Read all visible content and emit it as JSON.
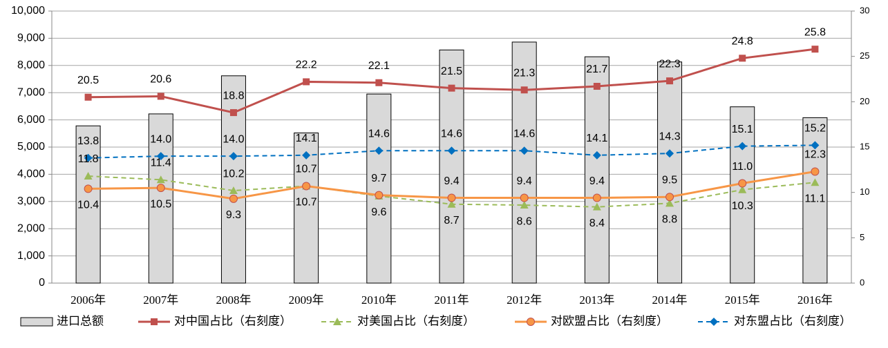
{
  "chart_data": {
    "type": "bar_line",
    "categories": [
      "2006年",
      "2007年",
      "2008年",
      "2009年",
      "2010年",
      "2011年",
      "2012年",
      "2013年",
      "2014年",
      "2015年",
      "2016年"
    ],
    "ylim": [
      0,
      10000
    ],
    "yticks": [
      {
        "value": 0,
        "label": "0"
      },
      {
        "value": 1000,
        "label": "1,000"
      },
      {
        "value": 2000,
        "label": "2,000"
      },
      {
        "value": 3000,
        "label": "3,000"
      },
      {
        "value": 4000,
        "label": "4,000"
      },
      {
        "value": 5000,
        "label": "5,000"
      },
      {
        "value": 6000,
        "label": "6,000"
      },
      {
        "value": 7000,
        "label": "7,000"
      },
      {
        "value": 8000,
        "label": "8,000"
      },
      {
        "value": 9000,
        "label": "9,000"
      },
      {
        "value": 10000,
        "label": "10,000"
      }
    ],
    "y2lim": [
      0,
      30
    ],
    "y2ticks": [
      0,
      5,
      10,
      15,
      20,
      25,
      30
    ],
    "grid": true,
    "series": [
      {
        "name": "进口总额",
        "type": "bar",
        "color": "#d9d9d9",
        "values": [
          5780,
          6220,
          7620,
          5520,
          6950,
          8570,
          8860,
          8320,
          8130,
          6480,
          6080
        ]
      },
      {
        "name": "对中国占比（右刻度）",
        "type": "line",
        "axis": "y2",
        "color": "#c0504d",
        "marker": "square",
        "dash": false,
        "values": [
          20.5,
          20.6,
          18.8,
          22.2,
          22.1,
          21.5,
          21.3,
          21.7,
          22.3,
          24.8,
          25.8
        ],
        "value_labels": [
          "20.5",
          "20.6",
          "18.8",
          "22.2",
          "22.1",
          "21.5",
          "21.3",
          "21.7",
          "22.3",
          "24.8",
          "25.8"
        ]
      },
      {
        "name": "对美国占比（右刻度）",
        "type": "line",
        "axis": "y2",
        "color": "#9bbb59",
        "marker": "triangle",
        "dash": true,
        "values": [
          11.8,
          11.4,
          10.2,
          10.7,
          9.6,
          8.7,
          8.6,
          8.4,
          8.8,
          10.3,
          11.1
        ],
        "value_labels": [
          "11.8",
          "11.4",
          "10.2",
          "10.7",
          "9.6",
          "8.7",
          "8.6",
          "8.4",
          "8.8",
          "10.3",
          "11.1"
        ]
      },
      {
        "name": "对欧盟占比（右刻度）",
        "type": "line",
        "axis": "y2",
        "color": "#f79646",
        "marker": "circle",
        "dash": false,
        "values": [
          10.4,
          10.5,
          9.3,
          10.7,
          9.7,
          9.4,
          9.4,
          9.4,
          9.5,
          11.0,
          12.3
        ],
        "value_labels": [
          "10.4",
          "10.5",
          "9.3",
          "10.7",
          "9.7",
          "9.4",
          "9.4",
          "9.4",
          "9.5",
          "11.0",
          "12.3"
        ]
      },
      {
        "name": "对东盟占比（右刻度）",
        "type": "line",
        "axis": "y2",
        "color": "#0070c0",
        "marker": "diamond",
        "dash": true,
        "values": [
          13.8,
          14.0,
          14.0,
          14.1,
          14.6,
          14.6,
          14.6,
          14.1,
          14.3,
          15.1,
          15.2
        ],
        "value_labels": [
          "13.8",
          "14.0",
          "14.0",
          "14.1",
          "14.6",
          "14.6",
          "14.6",
          "14.1",
          "14.3",
          "15.1",
          "15.2"
        ]
      }
    ]
  }
}
